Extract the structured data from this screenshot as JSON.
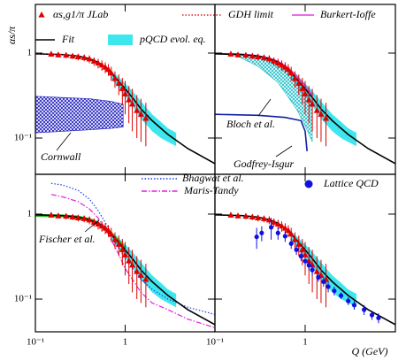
{
  "chart_data": [
    {
      "type": "line",
      "xscale": "log",
      "yscale": "log",
      "xlim": [
        0.1,
        10
      ],
      "ylim": [
        0.0374,
        3.74
      ],
      "xticks": [
        0.1,
        1,
        10
      ],
      "yticks": [
        {
          "value": 0.1,
          "label": "10⁻¹"
        },
        1
      ],
      "xtick_labels": false,
      "ytick_labels": true,
      "ylabel": "αs/π",
      "series": [
        {
          "name": "pQCD evol. eq.",
          "type": "band",
          "color": "#3ee6ee",
          "x": [
            0.7,
            0.8,
            1.0,
            1.2,
            1.5,
            2,
            2.5,
            3,
            3.7
          ],
          "values": [
            0.62,
            0.55,
            0.44,
            0.36,
            0.27,
            0.19,
            0.155,
            0.13,
            0.115
          ],
          "lower": [
            0.5,
            0.42,
            0.31,
            0.24,
            0.17,
            0.12,
            0.1,
            0.09,
            0.08
          ]
        },
        {
          "name": "Cornwall",
          "type": "band",
          "pattern": "hatch",
          "color": "#2020c0",
          "x": [
            0.1,
            0.2,
            0.4,
            0.7,
            0.95
          ],
          "values": [
            0.31,
            0.3,
            0.29,
            0.27,
            0.25
          ],
          "lower": [
            0.115,
            0.12,
            0.125,
            0.13,
            0.135
          ]
        },
        {
          "name": "Fit",
          "type": "line",
          "color": "#000000",
          "x": [
            0.1,
            0.2,
            0.3,
            0.4,
            0.5,
            0.6,
            0.7,
            0.8,
            1.0,
            1.2,
            1.5,
            2,
            3,
            5,
            10
          ],
          "values": [
            0.98,
            0.96,
            0.92,
            0.86,
            0.78,
            0.68,
            0.58,
            0.5,
            0.38,
            0.3,
            0.22,
            0.16,
            0.11,
            0.075,
            0.05
          ]
        },
        {
          "name": "GDH limit",
          "type": "line",
          "dash": "dotted",
          "color": "#e02020",
          "x": [
            0.1,
            0.2,
            0.3,
            0.4,
            0.5,
            0.6,
            0.7
          ],
          "values": [
            0.99,
            0.96,
            0.91,
            0.84,
            0.75,
            0.65,
            0.55
          ]
        },
        {
          "name": "αs,g1/π JLab",
          "type": "scatter",
          "marker": "triangle",
          "color": "#e00000",
          "x": [
            0.15,
            0.18,
            0.22,
            0.26,
            0.3,
            0.35,
            0.4,
            0.45,
            0.5,
            0.55,
            0.6,
            0.65,
            0.7,
            0.77,
            0.85,
            0.93,
            1.0,
            1.1,
            1.2,
            1.35,
            1.5,
            1.7
          ],
          "values": [
            0.97,
            0.95,
            0.94,
            0.92,
            0.9,
            0.88,
            0.85,
            0.8,
            0.76,
            0.72,
            0.68,
            0.64,
            0.58,
            0.5,
            0.44,
            0.38,
            0.33,
            0.28,
            0.25,
            0.21,
            0.19,
            0.17
          ],
          "errors": [
            0.06,
            0.06,
            0.07,
            0.07,
            0.08,
            0.08,
            0.09,
            0.09,
            0.1,
            0.1,
            0.1,
            0.1,
            0.11,
            0.11,
            0.12,
            0.13,
            0.14,
            0.13,
            0.13,
            0.11,
            0.1,
            0.09
          ]
        }
      ]
    },
    {
      "type": "line",
      "xscale": "log",
      "yscale": "log",
      "xlim": [
        0.1,
        10
      ],
      "ylim": [
        0.0374,
        3.74
      ],
      "xticks": [
        0.1,
        1,
        10
      ],
      "yticks": [
        0.1,
        1
      ],
      "xtick_labels": false,
      "ytick_labels": false,
      "series": [
        {
          "type": "band",
          "color": "#3ee6ee",
          "x": [
            0.7,
            0.8,
            1.0,
            1.2,
            1.5,
            2,
            2.5,
            3,
            3.7
          ],
          "values": [
            0.62,
            0.55,
            0.44,
            0.36,
            0.27,
            0.19,
            0.155,
            0.13,
            0.115
          ],
          "lower": [
            0.5,
            0.42,
            0.31,
            0.24,
            0.17,
            0.12,
            0.1,
            0.09,
            0.08
          ]
        },
        {
          "name": "Bloch et al.",
          "type": "band",
          "pattern": "hatch",
          "color": "#20c0c8",
          "x": [
            0.16,
            0.3,
            0.5,
            0.8,
            1.0,
            1.2
          ],
          "values": [
            1.0,
            0.94,
            0.8,
            0.56,
            0.42,
            0.22
          ],
          "lower": [
            0.97,
            0.7,
            0.45,
            0.22,
            0.14,
            0.09
          ]
        },
        {
          "name": "Godfrey-Isgur",
          "type": "line",
          "color": "#1020a0",
          "x": [
            0.1,
            0.3,
            0.6,
            0.9,
            1.0,
            1.05
          ],
          "values": [
            0.19,
            0.185,
            0.175,
            0.16,
            0.12,
            0.07
          ]
        },
        {
          "name": "Burkert-Ioffe",
          "type": "line",
          "color": "#e040e0",
          "x": [
            0.1,
            0.2,
            0.3,
            0.4,
            0.5,
            0.6,
            0.7,
            0.8,
            1.0,
            1.2
          ],
          "values": [
            0.99,
            0.97,
            0.93,
            0.87,
            0.8,
            0.71,
            0.62,
            0.54,
            0.41,
            0.32
          ]
        },
        {
          "type": "line",
          "color": "#000000",
          "x": [
            0.1,
            0.2,
            0.3,
            0.4,
            0.5,
            0.6,
            0.7,
            0.8,
            1.0,
            1.2,
            1.5,
            2,
            3,
            5,
            10
          ],
          "values": [
            0.98,
            0.96,
            0.92,
            0.86,
            0.78,
            0.68,
            0.58,
            0.5,
            0.38,
            0.3,
            0.22,
            0.16,
            0.11,
            0.075,
            0.05
          ]
        },
        {
          "type": "scatter",
          "marker": "triangle",
          "color": "#e00000",
          "x": [
            0.15,
            0.18,
            0.22,
            0.26,
            0.3,
            0.35,
            0.4,
            0.45,
            0.5,
            0.55,
            0.6,
            0.65,
            0.7,
            0.77,
            0.85,
            0.93,
            1.0,
            1.1,
            1.2,
            1.35,
            1.5,
            1.7
          ],
          "values": [
            0.97,
            0.95,
            0.94,
            0.92,
            0.9,
            0.88,
            0.85,
            0.8,
            0.76,
            0.72,
            0.68,
            0.64,
            0.58,
            0.5,
            0.44,
            0.38,
            0.33,
            0.28,
            0.25,
            0.21,
            0.19,
            0.17
          ],
          "errors": [
            0.06,
            0.06,
            0.07,
            0.07,
            0.08,
            0.08,
            0.09,
            0.09,
            0.1,
            0.1,
            0.1,
            0.1,
            0.11,
            0.11,
            0.12,
            0.13,
            0.14,
            0.13,
            0.13,
            0.11,
            0.1,
            0.09
          ]
        }
      ]
    },
    {
      "type": "line",
      "xscale": "log",
      "yscale": "log",
      "xlim": [
        0.1,
        10
      ],
      "ylim": [
        0.0412,
        2.94
      ],
      "xticks": [
        {
          "value": 0.1,
          "label": "10⁻¹"
        },
        1
      ],
      "yticks": [
        {
          "value": 0.1,
          "label": "10⁻¹"
        },
        1
      ],
      "xtick_labels": true,
      "ytick_labels": true,
      "series": [
        {
          "type": "band",
          "color": "#3ee6ee",
          "x": [
            0.7,
            0.8,
            1.0,
            1.2,
            1.5,
            2,
            2.5,
            3,
            3.7
          ],
          "values": [
            0.62,
            0.55,
            0.44,
            0.36,
            0.27,
            0.19,
            0.155,
            0.13,
            0.115
          ],
          "lower": [
            0.5,
            0.42,
            0.31,
            0.24,
            0.17,
            0.12,
            0.1,
            0.09,
            0.08
          ]
        },
        {
          "name": "Fischer et al.",
          "type": "band",
          "color": "#20c020",
          "x": [
            0.1,
            0.2,
            0.3,
            0.4,
            0.5,
            0.6,
            0.7,
            0.8,
            1.0
          ],
          "values": [
            1.0,
            0.99,
            0.96,
            0.9,
            0.82,
            0.72,
            0.62,
            0.54,
            0.42
          ],
          "lower": [
            0.93,
            0.92,
            0.88,
            0.82,
            0.74,
            0.64,
            0.55,
            0.47,
            0.36
          ]
        },
        {
          "name": "Bhagwat et al.",
          "type": "line",
          "dash": "dotted",
          "color": "#2040e0",
          "x": [
            0.15,
            0.2,
            0.3,
            0.4,
            0.5,
            0.6,
            0.8,
            1.0,
            1.5,
            2,
            3,
            5,
            10
          ],
          "values": [
            2.3,
            2.2,
            1.9,
            1.5,
            1.1,
            0.8,
            0.45,
            0.3,
            0.17,
            0.13,
            0.1,
            0.08,
            0.066
          ]
        },
        {
          "name": "Maris-Tandy",
          "type": "line",
          "dash": "dashdot",
          "color": "#e020e0",
          "x": [
            0.15,
            0.2,
            0.3,
            0.4,
            0.5,
            0.6,
            0.8,
            1.0,
            1.5,
            2,
            3,
            5,
            10
          ],
          "values": [
            1.7,
            1.6,
            1.4,
            1.15,
            0.9,
            0.68,
            0.38,
            0.23,
            0.12,
            0.09,
            0.075,
            0.058,
            0.046
          ]
        },
        {
          "type": "line",
          "color": "#000000",
          "x": [
            0.1,
            0.2,
            0.3,
            0.4,
            0.5,
            0.6,
            0.7,
            0.8,
            1.0,
            1.2,
            1.5,
            2,
            3,
            5,
            10
          ],
          "values": [
            0.98,
            0.96,
            0.92,
            0.86,
            0.78,
            0.68,
            0.58,
            0.5,
            0.38,
            0.3,
            0.22,
            0.16,
            0.11,
            0.075,
            0.05
          ]
        },
        {
          "type": "scatter",
          "marker": "triangle",
          "color": "#e00000",
          "x": [
            0.15,
            0.18,
            0.22,
            0.26,
            0.3,
            0.35,
            0.4,
            0.45,
            0.5,
            0.55,
            0.6,
            0.65,
            0.7,
            0.77,
            0.85,
            0.93,
            1.0,
            1.1,
            1.2,
            1.35,
            1.5,
            1.7
          ],
          "values": [
            0.97,
            0.95,
            0.94,
            0.92,
            0.9,
            0.88,
            0.85,
            0.8,
            0.76,
            0.72,
            0.68,
            0.64,
            0.58,
            0.5,
            0.44,
            0.38,
            0.33,
            0.28,
            0.25,
            0.21,
            0.19,
            0.17
          ],
          "errors": [
            0.06,
            0.06,
            0.07,
            0.07,
            0.08,
            0.08,
            0.09,
            0.09,
            0.1,
            0.1,
            0.1,
            0.1,
            0.11,
            0.11,
            0.12,
            0.13,
            0.14,
            0.13,
            0.13,
            0.11,
            0.1,
            0.09
          ]
        }
      ]
    },
    {
      "type": "line",
      "xscale": "log",
      "yscale": "log",
      "xlim": [
        0.1,
        10
      ],
      "ylim": [
        0.0412,
        2.94
      ],
      "xticks": [
        {
          "value": 0.1,
          "label": "10⁻¹"
        },
        1
      ],
      "yticks": [
        0.1,
        1
      ],
      "xtick_labels": true,
      "ytick_labels": false,
      "xlabel": "Q (GeV)",
      "series": [
        {
          "type": "band",
          "color": "#3ee6ee",
          "x": [
            0.7,
            0.8,
            1.0,
            1.2,
            1.5,
            2,
            2.5,
            3,
            3.7
          ],
          "values": [
            0.62,
            0.55,
            0.44,
            0.36,
            0.27,
            0.19,
            0.155,
            0.13,
            0.115
          ],
          "lower": [
            0.5,
            0.42,
            0.31,
            0.24,
            0.17,
            0.12,
            0.1,
            0.09,
            0.08
          ]
        },
        {
          "type": "line",
          "color": "#000000",
          "x": [
            0.1,
            0.2,
            0.3,
            0.4,
            0.5,
            0.6,
            0.7,
            0.8,
            1.0,
            1.2,
            1.5,
            2,
            3,
            5,
            10
          ],
          "values": [
            0.98,
            0.96,
            0.92,
            0.86,
            0.78,
            0.68,
            0.58,
            0.5,
            0.38,
            0.3,
            0.22,
            0.16,
            0.11,
            0.075,
            0.05
          ]
        },
        {
          "type": "scatter",
          "marker": "triangle",
          "color": "#e00000",
          "x": [
            0.15,
            0.18,
            0.22,
            0.26,
            0.3,
            0.35,
            0.4,
            0.45,
            0.5,
            0.55,
            0.6,
            0.65,
            0.7,
            0.77,
            0.85,
            0.93,
            1.0,
            1.1,
            1.2,
            1.35,
            1.5,
            1.7
          ],
          "values": [
            0.97,
            0.95,
            0.94,
            0.92,
            0.9,
            0.88,
            0.85,
            0.8,
            0.76,
            0.72,
            0.68,
            0.64,
            0.58,
            0.5,
            0.44,
            0.38,
            0.33,
            0.28,
            0.25,
            0.21,
            0.19,
            0.17
          ],
          "errors": [
            0.06,
            0.06,
            0.07,
            0.07,
            0.08,
            0.08,
            0.09,
            0.09,
            0.1,
            0.1,
            0.1,
            0.1,
            0.11,
            0.11,
            0.12,
            0.13,
            0.14,
            0.13,
            0.13,
            0.11,
            0.1,
            0.09
          ]
        },
        {
          "name": "Lattice QCD",
          "type": "scatter",
          "marker": "circle",
          "color": "#1010e0",
          "x": [
            0.29,
            0.33,
            0.42,
            0.5,
            0.6,
            0.7,
            0.8,
            0.9,
            1.0,
            1.1,
            1.2,
            1.4,
            1.6,
            1.8,
            2.1,
            2.5,
            3.0,
            3.5,
            4.5,
            5.5,
            6.5
          ],
          "values": [
            0.54,
            0.6,
            0.7,
            0.6,
            0.55,
            0.45,
            0.38,
            0.32,
            0.28,
            0.25,
            0.22,
            0.18,
            0.16,
            0.14,
            0.125,
            0.11,
            0.095,
            0.085,
            0.075,
            0.065,
            0.06
          ],
          "errors": [
            0.15,
            0.12,
            0.2,
            0.1,
            0.08,
            0.06,
            0.05,
            0.04,
            0.03,
            0.03,
            0.03,
            0.02,
            0.02,
            0.02,
            0.015,
            0.01,
            0.01,
            0.01,
            0.01,
            0.008,
            0.008
          ]
        }
      ]
    }
  ]
}
